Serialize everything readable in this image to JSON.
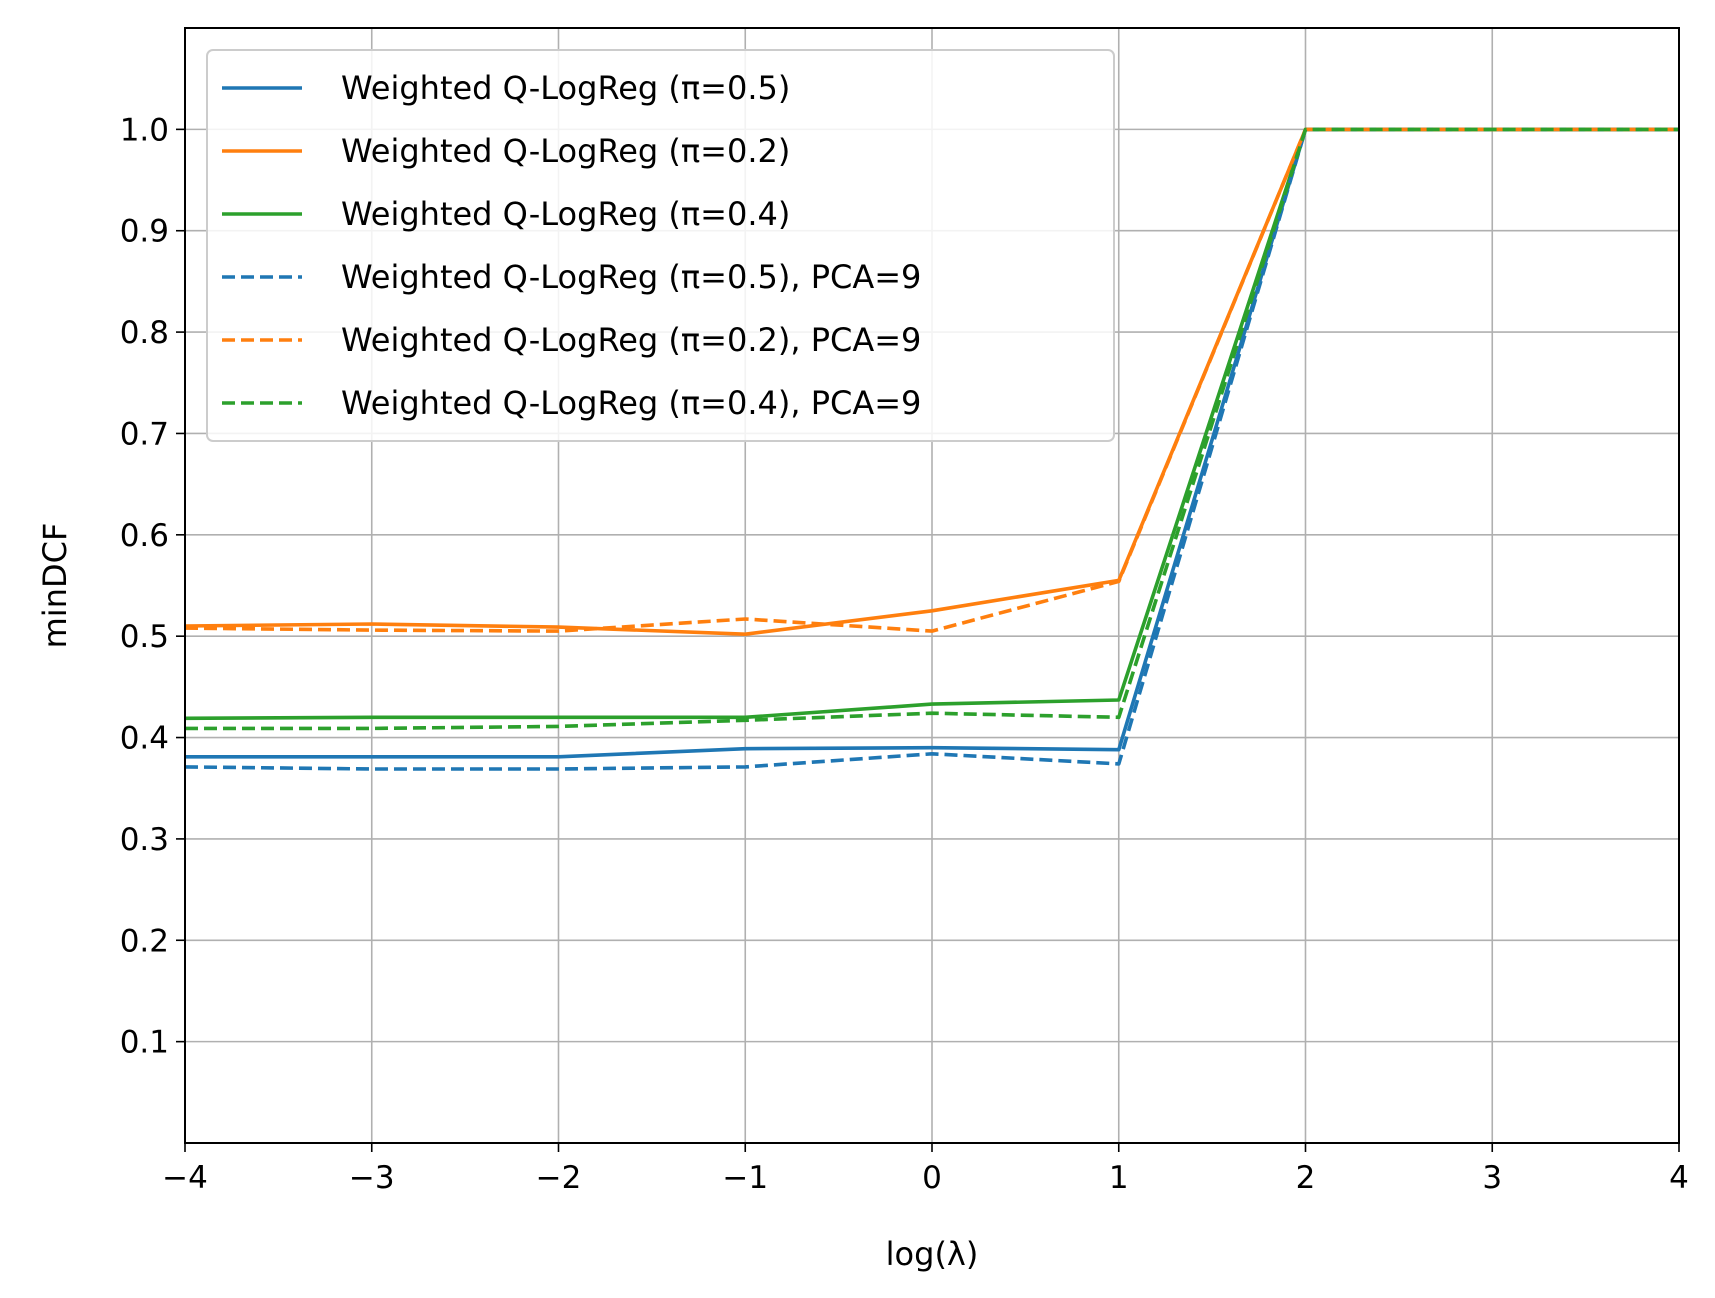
{
  "chart_data": {
    "type": "line",
    "title": "",
    "xlabel": "log(λ)",
    "ylabel": "minDCF",
    "xlim": [
      -4,
      4
    ],
    "ylim": [
      0.0,
      1.1
    ],
    "x_ticks": [
      -4,
      -3,
      -2,
      -1,
      0,
      1,
      2,
      3,
      4
    ],
    "x_tick_labels": [
      "−4",
      "−3",
      "−2",
      "−1",
      "0",
      "1",
      "2",
      "3",
      "4"
    ],
    "y_ticks": [
      0.1,
      0.2,
      0.3,
      0.4,
      0.5,
      0.6,
      0.7,
      0.8,
      0.9,
      1.0
    ],
    "y_tick_labels": [
      "0.1",
      "0.2",
      "0.3",
      "0.4",
      "0.5",
      "0.6",
      "0.7",
      "0.8",
      "0.9",
      "1.0"
    ],
    "grid": true,
    "legend_position": "top-left",
    "x": [
      -4,
      -3,
      -2,
      -1,
      0,
      1,
      2,
      3,
      4
    ],
    "series": [
      {
        "name": "Weighted Q-LogReg (π=0.5)",
        "color": "#1f77b4",
        "dash": "solid",
        "values": [
          0.381,
          0.381,
          0.381,
          0.389,
          0.39,
          0.388,
          1.0,
          1.0,
          1.0
        ]
      },
      {
        "name": "Weighted Q-LogReg (π=0.2)",
        "color": "#ff7f0e",
        "dash": "solid",
        "values": [
          0.51,
          0.512,
          0.509,
          0.502,
          0.525,
          0.555,
          1.0,
          1.0,
          1.0
        ]
      },
      {
        "name": "Weighted Q-LogReg (π=0.4)",
        "color": "#2ca02c",
        "dash": "solid",
        "values": [
          0.419,
          0.42,
          0.42,
          0.42,
          0.433,
          0.437,
          1.0,
          1.0,
          1.0
        ]
      },
      {
        "name": "Weighted Q-LogReg (π=0.5), PCA=9",
        "color": "#1f77b4",
        "dash": "dashed",
        "values": [
          0.371,
          0.369,
          0.369,
          0.371,
          0.384,
          0.374,
          1.0,
          1.0,
          1.0
        ]
      },
      {
        "name": "Weighted Q-LogReg (π=0.2), PCA=9",
        "color": "#ff7f0e",
        "dash": "dashed",
        "values": [
          0.508,
          0.506,
          0.505,
          0.517,
          0.505,
          0.554,
          1.0,
          1.0,
          1.0
        ]
      },
      {
        "name": "Weighted Q-LogReg (π=0.4), PCA=9",
        "color": "#2ca02c",
        "dash": "dashed",
        "values": [
          0.409,
          0.409,
          0.411,
          0.417,
          0.424,
          0.42,
          1.0,
          1.0,
          1.0
        ]
      }
    ]
  }
}
